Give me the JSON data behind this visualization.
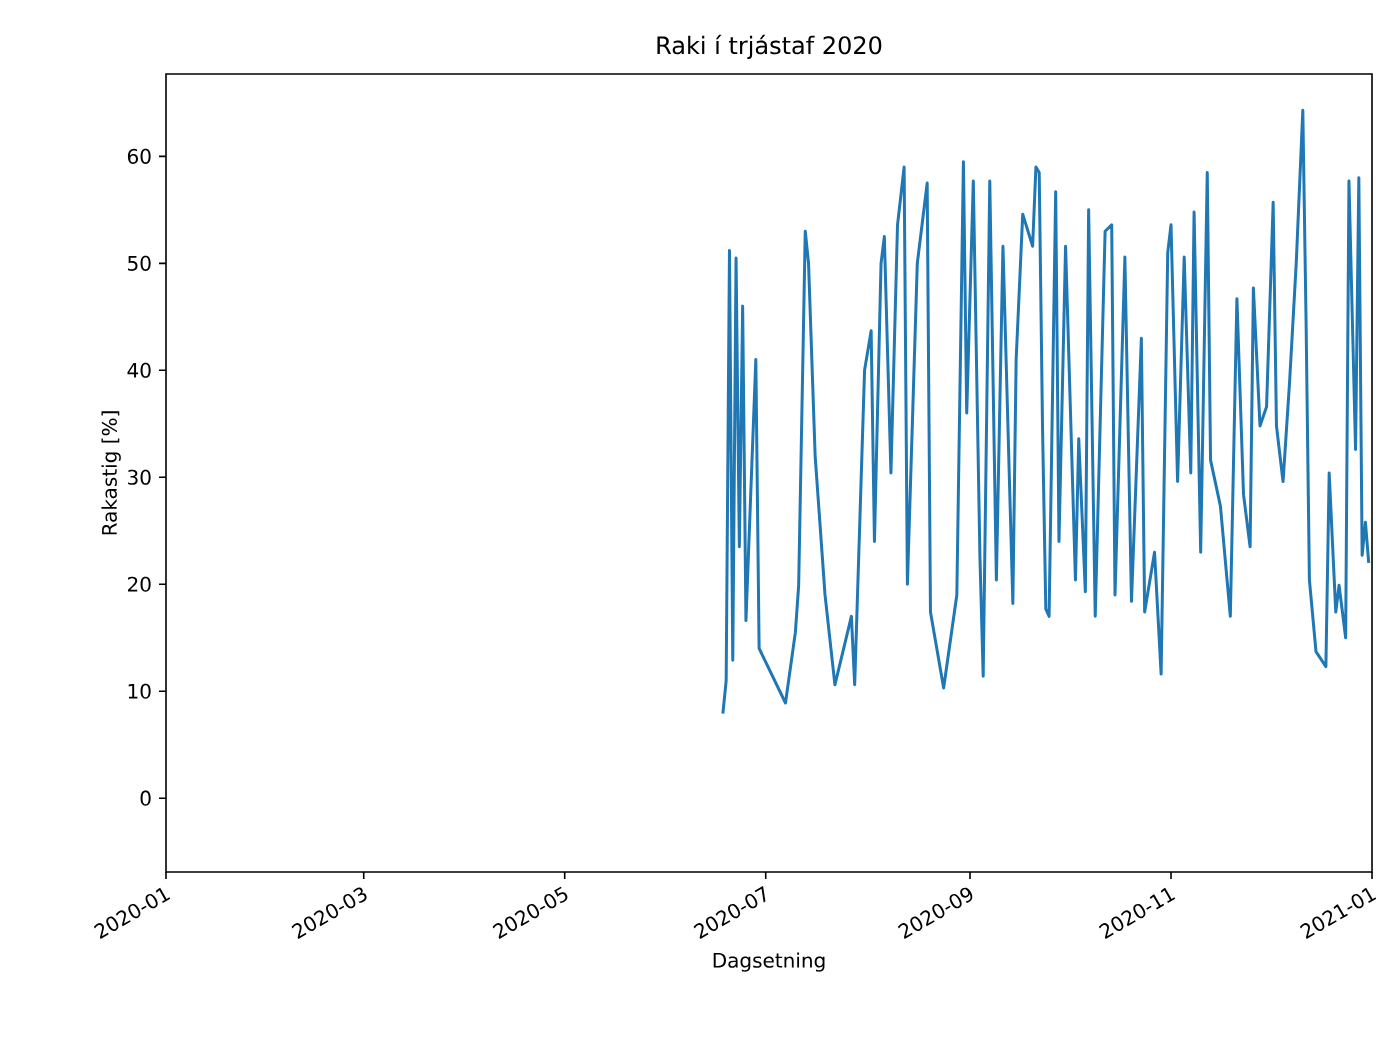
{
  "chart_data": {
    "type": "line",
    "title": "Raki í trjástaf 2020",
    "xlabel": "Dagsetning",
    "ylabel": "Rakastig [%]",
    "xlim": [
      "2020-01",
      "2021-01"
    ],
    "xticks": [
      "2020-01",
      "2020-03",
      "2020-05",
      "2020-07",
      "2020-09",
      "2020-11",
      "2021-01"
    ],
    "ylim": [
      -6.9,
      67.7
    ],
    "yticks": [
      0,
      10,
      20,
      30,
      40,
      50,
      60
    ],
    "grid": false,
    "marker": "none",
    "line_style": "solid",
    "series": [
      {
        "color": "#1f77b4",
        "x": [
          "2020-06-18",
          "2020-06-19",
          "2020-06-20",
          "2020-06-21",
          "2020-06-22",
          "2020-06-23",
          "2020-06-24",
          "2020-06-25",
          "2020-06-28",
          "2020-06-29",
          "2020-07-07",
          "2020-07-10",
          "2020-07-11",
          "2020-07-13",
          "2020-07-14",
          "2020-07-16",
          "2020-07-19",
          "2020-07-22",
          "2020-07-27",
          "2020-07-28",
          "2020-07-31",
          "2020-08-02",
          "2020-08-03",
          "2020-08-05",
          "2020-08-06",
          "2020-08-08",
          "2020-08-10",
          "2020-08-12",
          "2020-08-13",
          "2020-08-16",
          "2020-08-19",
          "2020-08-20",
          "2020-08-24",
          "2020-08-28",
          "2020-08-30",
          "2020-08-31",
          "2020-09-02",
          "2020-09-04",
          "2020-09-05",
          "2020-09-07",
          "2020-09-09",
          "2020-09-11",
          "2020-09-14",
          "2020-09-15",
          "2020-09-17",
          "2020-09-20",
          "2020-09-21",
          "2020-09-22",
          "2020-09-23",
          "2020-09-24",
          "2020-09-25",
          "2020-09-27",
          "2020-09-28",
          "2020-09-30",
          "2020-10-03",
          "2020-10-04",
          "2020-10-06",
          "2020-10-07",
          "2020-10-09",
          "2020-10-12",
          "2020-10-14",
          "2020-10-15",
          "2020-10-18",
          "2020-10-20",
          "2020-10-23",
          "2020-10-24",
          "2020-10-27",
          "2020-10-29",
          "2020-10-31",
          "2020-11-01",
          "2020-11-03",
          "2020-11-05",
          "2020-11-07",
          "2020-11-08",
          "2020-11-10",
          "2020-11-12",
          "2020-11-13",
          "2020-11-16",
          "2020-11-19",
          "2020-11-21",
          "2020-11-23",
          "2020-11-25",
          "2020-11-26",
          "2020-11-28",
          "2020-11-30",
          "2020-12-02",
          "2020-12-03",
          "2020-12-05",
          "2020-12-07",
          "2020-12-09",
          "2020-12-11",
          "2020-12-12",
          "2020-12-13",
          "2020-12-15",
          "2020-12-18",
          "2020-12-19",
          "2020-12-21",
          "2020-12-22",
          "2020-12-24",
          "2020-12-25",
          "2020-12-27",
          "2020-12-28",
          "2020-12-29",
          "2020-12-30",
          "2020-12-31"
        ],
        "values": [
          7.9,
          11,
          51.2,
          12.9,
          50.5,
          23.5,
          46,
          16.6,
          41,
          14,
          8.9,
          15.5,
          19.9,
          53,
          50,
          32,
          19,
          10.6,
          17,
          10.6,
          40,
          43.7,
          24,
          50,
          52.5,
          30.4,
          53.6,
          59,
          20,
          50,
          57.5,
          17.4,
          10.3,
          19,
          59.5,
          36,
          57.7,
          22.7,
          11.4,
          57.7,
          20.4,
          51.6,
          18.2,
          41,
          54.6,
          51.6,
          59,
          58.5,
          34.8,
          17.7,
          17,
          56.7,
          24,
          51.6,
          20.4,
          33.6,
          19.3,
          55,
          17,
          53,
          53.6,
          19,
          50.6,
          18.4,
          43,
          17.4,
          23,
          11.6,
          51,
          53.6,
          29.6,
          50.6,
          30.4,
          54.8,
          23,
          58.5,
          31.6,
          27.3,
          17,
          46.7,
          28.4,
          23.5,
          47.7,
          34.8,
          36.6,
          55.7,
          34.8,
          29.6,
          39,
          50,
          64.3,
          44.3,
          20.4,
          13.7,
          12.3,
          30.4,
          17.4,
          19.9,
          15,
          57.7,
          32.6,
          58,
          22.7,
          25.8,
          22
        ]
      }
    ]
  }
}
